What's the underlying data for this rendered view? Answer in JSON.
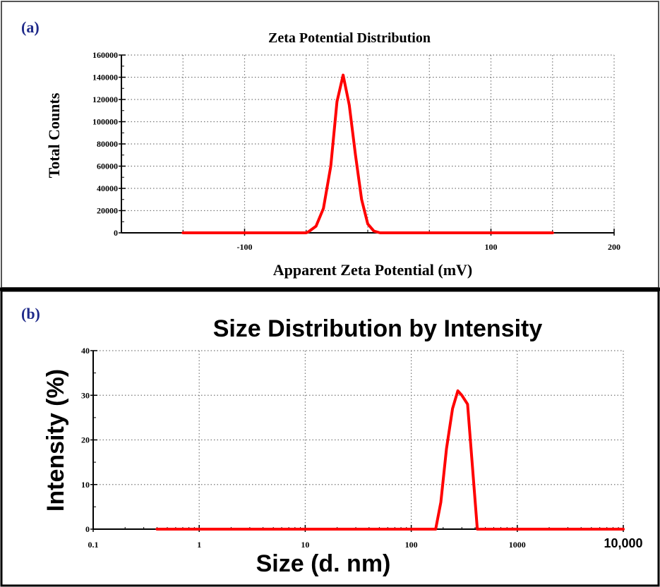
{
  "chart_data": [
    {
      "panel_label": "(a)",
      "type": "line",
      "title": "Zeta Potential Distribution",
      "xlabel": "Apparent Zeta Potential (mV)",
      "ylabel": "Total Counts",
      "xlim": [
        -200,
        200
      ],
      "ylim": [
        0,
        160000
      ],
      "xticks": [
        -100,
        100,
        200
      ],
      "yticks": [
        0,
        20000,
        40000,
        60000,
        80000,
        100000,
        120000,
        140000,
        160000
      ],
      "xtick_labels": [
        "-100",
        "100",
        "200"
      ],
      "ytick_labels": [
        "0",
        "20000",
        "40000",
        "60000",
        "80000",
        "100000",
        "120000",
        "140000",
        "160000"
      ],
      "grid": true,
      "series_color": "#ff0000",
      "series": [
        {
          "x": [
            -150,
            -50,
            -48,
            -42,
            -36,
            -30,
            -25,
            -20,
            -15,
            -10,
            -5,
            0,
            5,
            10,
            150
          ],
          "y": [
            0,
            0,
            1000,
            6000,
            22000,
            60000,
            118000,
            142000,
            115000,
            70000,
            30000,
            8000,
            1500,
            0,
            0
          ]
        }
      ]
    },
    {
      "panel_label": "(b)",
      "type": "line",
      "title": "Size Distribution by Intensity",
      "xlabel": "Size (d. nm)",
      "ylabel": "Intensity (%)",
      "xscale": "log",
      "xlim": [
        0.1,
        10000
      ],
      "ylim": [
        0,
        40
      ],
      "xticks": [
        0.1,
        1,
        10,
        100,
        1000,
        10000
      ],
      "yticks": [
        0,
        10,
        20,
        30,
        40
      ],
      "xtick_labels": [
        "0.1",
        "1",
        "10",
        "100",
        "1000",
        "10,000"
      ],
      "ytick_labels": [
        "0",
        "10",
        "20",
        "30",
        "40"
      ],
      "grid": true,
      "series_color": "#ff0000",
      "series": [
        {
          "x": [
            0.4,
            170,
            190,
            215,
            245,
            275,
            300,
            340,
            420,
            10000
          ],
          "y": [
            0,
            0,
            6,
            18,
            27,
            31,
            30,
            28,
            0,
            0
          ]
        }
      ]
    }
  ]
}
